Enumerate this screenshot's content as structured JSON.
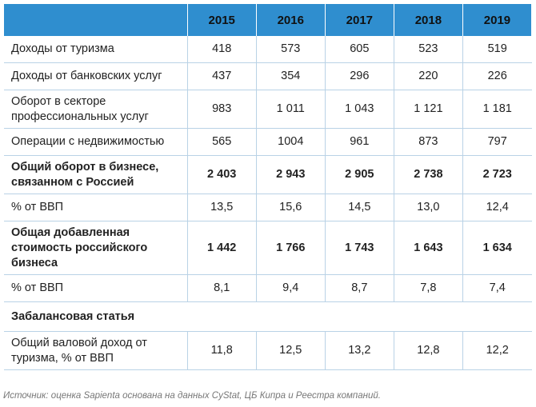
{
  "table": {
    "columns": [
      "",
      "2015",
      "2016",
      "2017",
      "2018",
      "2019"
    ],
    "rows": [
      {
        "label": "Доходы от туризма",
        "values": [
          "418",
          "573",
          "605",
          "523",
          "519"
        ]
      },
      {
        "label": "Доходы от банковских услуг",
        "values": [
          "437",
          "354",
          "296",
          "220",
          "226"
        ]
      },
      {
        "label": "Оборот в секторе профессиональных услуг",
        "values": [
          "983",
          "1 011",
          "1 043",
          "1 121",
          "1 181"
        ]
      },
      {
        "label": "Операции с недвижимостью",
        "values": [
          "565",
          "1004",
          "961",
          "873",
          "797"
        ]
      },
      {
        "label": "Общий оборот в бизнесе, связанном с Россией",
        "values": [
          "2 403",
          "2 943",
          "2 905",
          "2 738",
          "2 723"
        ]
      },
      {
        "label": "% от ВВП",
        "values": [
          "13,5",
          "15,6",
          "14,5",
          "13,0",
          "12,4"
        ]
      },
      {
        "label": "Общая добавленная стоимость российского бизнеса",
        "values": [
          "1 442",
          "1 766",
          "1 743",
          "1 643",
          "1 634"
        ]
      },
      {
        "label": "% от ВВП",
        "values": [
          "8,1",
          "9,4",
          "8,7",
          "7,8",
          "7,4"
        ]
      },
      {
        "label": "Забалансовая статья"
      },
      {
        "label": "Общий валовой доход от туризма, % от ВВП",
        "values": [
          "11,8",
          "12,5",
          "13,2",
          "12,8",
          "12,2"
        ]
      }
    ]
  },
  "source_note": "Источник: оценка Sapienta основана на данных CyStat, ЦБ Кипра и Реестра компаний.",
  "colors": {
    "header_bg": "#2f8ecf",
    "grid_line": "#b9d2e6"
  }
}
